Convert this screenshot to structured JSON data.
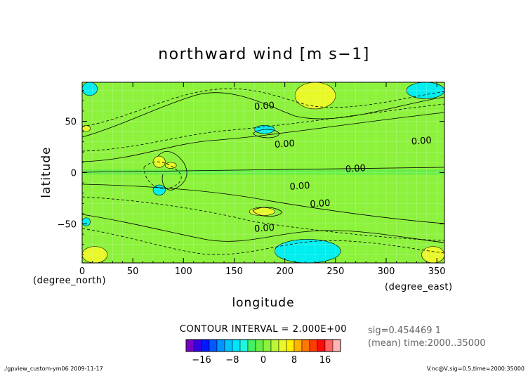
{
  "chart_data": {
    "type": "heatmap",
    "title": "northward wind [m s−1]",
    "xlabel": "longitude",
    "ylabel": "latitude",
    "x_unit": "(degree_east)",
    "y_unit": "(degree_north)",
    "xlim": [
      0,
      357.5
    ],
    "ylim": [
      -88,
      88
    ],
    "x_ticks": [
      0,
      50,
      100,
      150,
      200,
      250,
      300,
      350
    ],
    "y_ticks": [
      -50,
      0,
      50
    ],
    "y_tick_labels": [
      "−50",
      "0",
      "50"
    ],
    "contour_interval_text": "CONTOUR INTERVAL = 2.000E+00",
    "contour_labels": [
      {
        "text": "0.00",
        "x": 180,
        "y": 62
      },
      {
        "text": "0.00",
        "x": 200,
        "y": 25
      },
      {
        "text": "0.00",
        "x": 335,
        "y": 28
      },
      {
        "text": "0.00",
        "x": 270,
        "y": 1
      },
      {
        "text": "0.00",
        "x": 215,
        "y": -16
      },
      {
        "text": "0.00",
        "x": 235,
        "y": -33
      },
      {
        "text": "0.00",
        "x": 180,
        "y": -57
      }
    ],
    "colorbar": {
      "levels": [
        -20,
        -18,
        -16,
        -14,
        -12,
        -10,
        -8,
        -6,
        -4,
        -2,
        0,
        2,
        4,
        6,
        8,
        10,
        12,
        14,
        16,
        18,
        20
      ],
      "colors": [
        "#7a00c8",
        "#3800e0",
        "#0018ff",
        "#0058ff",
        "#0094ff",
        "#00c4ff",
        "#00e4ff",
        "#20f5e0",
        "#44ee66",
        "#66ee44",
        "#8cf23c",
        "#bdf535",
        "#e8f828",
        "#fff000",
        "#ffb400",
        "#ff7800",
        "#ff3c00",
        "#ff0a0a",
        "#ff6464",
        "#ffb4b4"
      ],
      "tick_values": [
        -16,
        -8,
        0,
        8,
        16
      ],
      "tick_labels": [
        "−16",
        "−8",
        "0",
        "8",
        "16"
      ]
    },
    "regions": [
      {
        "level": "light-green",
        "color": "#66ee44",
        "shape": "band",
        "x": [
          0,
          357.5
        ],
        "y": [
          -2,
          3
        ]
      },
      {
        "level": "cyan",
        "color": "#00eeee",
        "shape": "patch",
        "x": [
          0,
          15
        ],
        "y": [
          75,
          88
        ]
      },
      {
        "level": "cyan",
        "color": "#00eeee",
        "shape": "patch",
        "x": [
          320,
          357.5
        ],
        "y": [
          72,
          88
        ]
      },
      {
        "level": "cyan",
        "color": "#00eeee",
        "shape": "patch",
        "x": [
          170,
          190
        ],
        "y": [
          38,
          46
        ]
      },
      {
        "level": "cyan",
        "color": "#00eeee",
        "shape": "patch",
        "x": [
          190,
          255
        ],
        "y": [
          -88,
          -65
        ]
      },
      {
        "level": "cyan",
        "color": "#00eeee",
        "shape": "patch",
        "x": [
          70,
          82
        ],
        "y": [
          -22,
          -12
        ]
      },
      {
        "level": "cyan",
        "color": "#00eeee",
        "shape": "patch",
        "x": [
          0,
          8
        ],
        "y": [
          -52,
          -44
        ]
      },
      {
        "level": "yellow",
        "color": "#e8f828",
        "shape": "patch",
        "x": [
          210,
          250
        ],
        "y": [
          62,
          88
        ]
      },
      {
        "level": "yellow",
        "color": "#e8f828",
        "shape": "patch",
        "x": [
          70,
          82
        ],
        "y": [
          5,
          16
        ]
      },
      {
        "level": "yellow",
        "color": "#e8f828",
        "shape": "patch",
        "x": [
          82,
          93
        ],
        "y": [
          4,
          10
        ]
      },
      {
        "level": "yellow",
        "color": "#e8f828",
        "shape": "patch",
        "x": [
          165,
          190
        ],
        "y": [
          -42,
          -34
        ]
      },
      {
        "level": "yellow",
        "color": "#e8f828",
        "shape": "patch",
        "x": [
          0,
          25
        ],
        "y": [
          -88,
          -72
        ]
      },
      {
        "level": "yellow",
        "color": "#e8f828",
        "shape": "patch",
        "x": [
          335,
          357.5
        ],
        "y": [
          -88,
          -72
        ]
      },
      {
        "level": "yellow",
        "color": "#e8f828",
        "shape": "patch",
        "x": [
          0,
          8
        ],
        "y": [
          40,
          46
        ]
      }
    ]
  },
  "info": {
    "sig": "sig=0.454469 1",
    "mean": "(mean) time:2000..35000"
  },
  "footer": {
    "left": "./gpview_custom-ym06  2009-11-17",
    "right": "V.nc@V,sig=0.5,time=2000:35000"
  },
  "colors": {
    "background_green": "#8cf23c",
    "grid": "#ffffff",
    "contour": "#000000"
  }
}
